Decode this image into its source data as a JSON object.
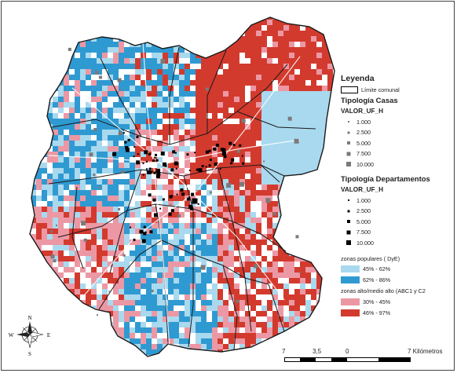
{
  "legend": {
    "title": "Leyenda",
    "boundary_label": "Límite comunal",
    "casas": {
      "title": "Tipología Casas",
      "field": "VALOR_UF_H",
      "classes": [
        "1.000",
        "2.500",
        "5.000",
        "7.500",
        "10.000"
      ],
      "color": "#7a7a7a"
    },
    "departamentos": {
      "title": "Tipología Departamentos",
      "field": "VALOR_UF_H",
      "classes": [
        "1.000",
        "2.500",
        "5.000",
        "7.500",
        "10.000"
      ],
      "color": "#000000"
    },
    "zonas_populares": {
      "label": "zonas populares  ( DyE)",
      "items": [
        {
          "label": "45% - 62%",
          "color": "#a9d9ee"
        },
        {
          "label": "62% - 86%",
          "color": "#2f9ad2"
        }
      ]
    },
    "zonas_alto": {
      "label": "zonas alto/medio alto (ABC1 y C2",
      "items": [
        {
          "label": "30% - 45%",
          "color": "#ec98a4"
        },
        {
          "label": "46% - 97%",
          "color": "#d33a2e"
        }
      ]
    }
  },
  "scale_bar": {
    "labels": [
      "7",
      "3,5",
      "0",
      "7 Kilómetros"
    ]
  },
  "compass": {
    "n": "N",
    "s": "S",
    "e": "E",
    "w": "W"
  }
}
